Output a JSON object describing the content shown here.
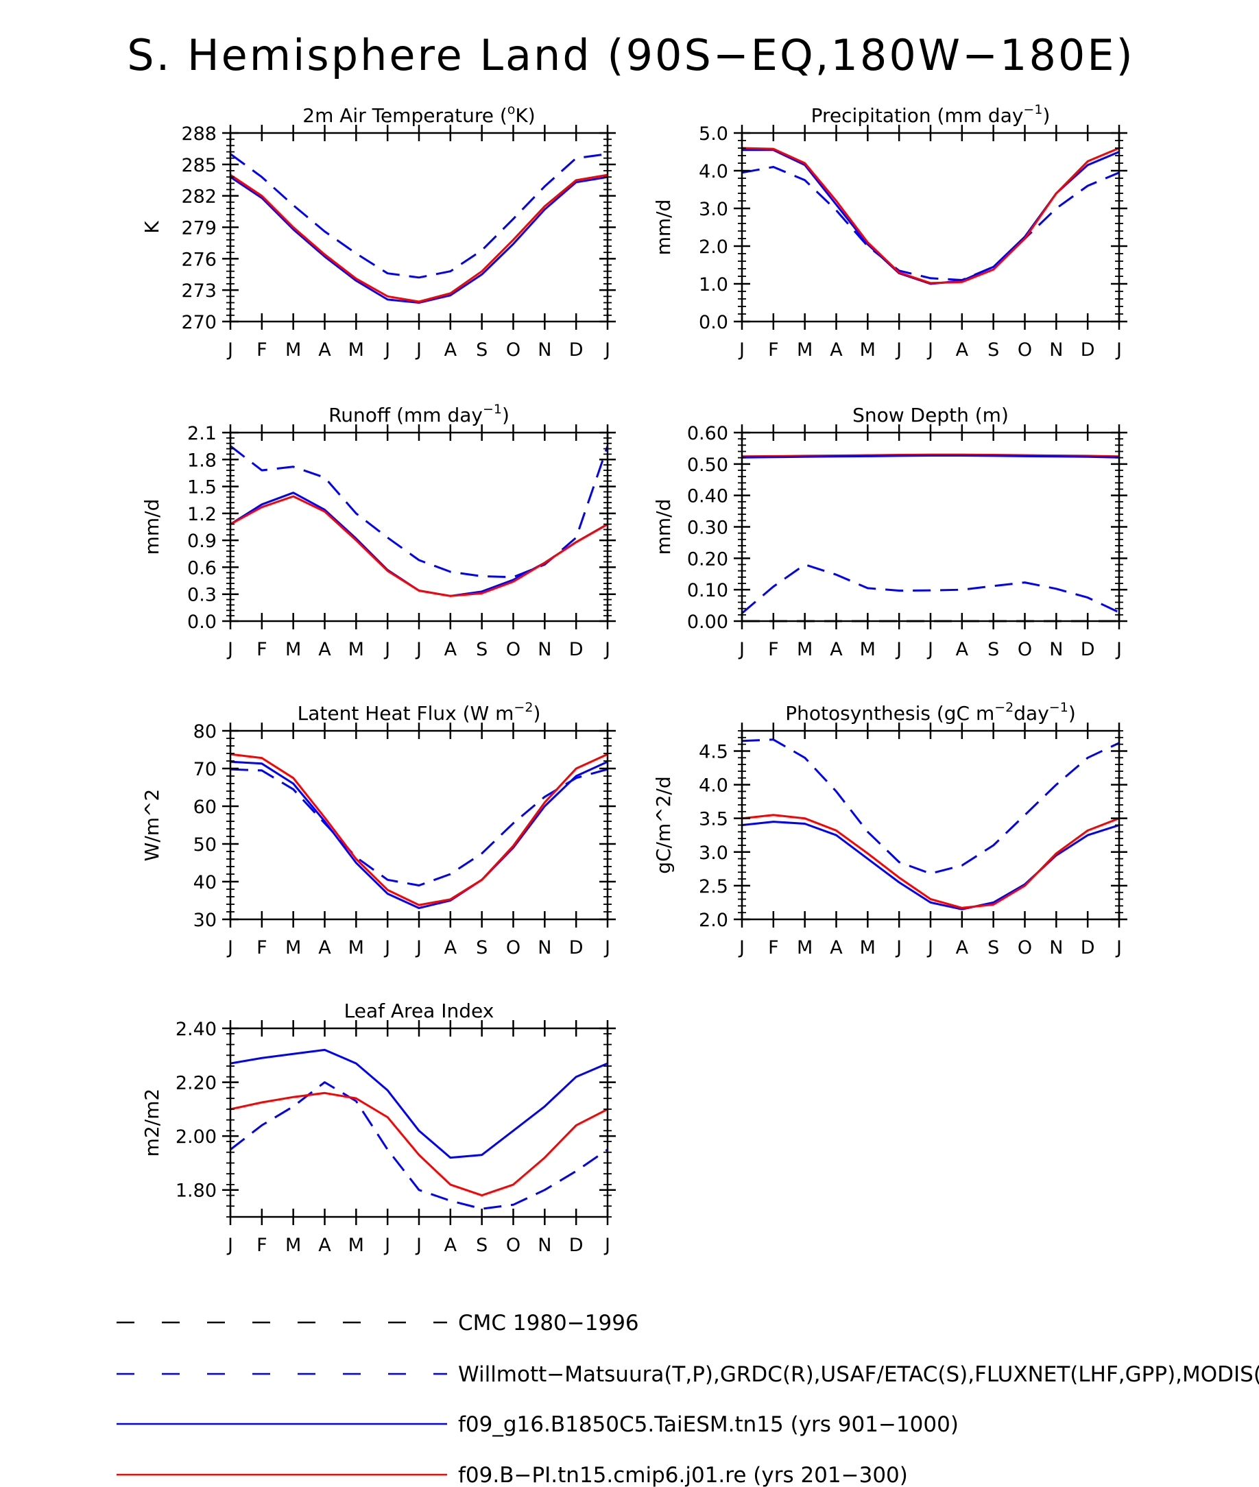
{
  "figure": {
    "title": "S. Hemisphere Land (90S−EQ,180W−180E)"
  },
  "legend": [
    {
      "label": "CMC 1980−1996",
      "color": "#000000",
      "dash": "dashed"
    },
    {
      "label": "Willmott−Matsuura(T,P),GRDC(R),USAF/ETAC(S),FLUXNET(LHF,GPP),MODIS(L",
      "color": "#0000ff",
      "dash": "dashed"
    },
    {
      "label": "f09_g16.B1850C5.TaiESM.tn15 (yrs 901−1000)",
      "color": "#0000ff",
      "dash": "solid"
    },
    {
      "label": "f09.B−PI.tn15.cmip6.j01.re (yrs 201−300)",
      "color": "#ff0000",
      "dash": "solid"
    }
  ],
  "chart_data": [
    {
      "type": "line",
      "title_main": "2m Air Temperature (",
      "title_sup": "o",
      "title_end": "K)",
      "ylabel": "K",
      "categories": [
        "J",
        "F",
        "M",
        "A",
        "M",
        "J",
        "J",
        "A",
        "S",
        "O",
        "N",
        "D",
        "J"
      ],
      "ylim": [
        270,
        288
      ],
      "yticks": [
        270,
        273,
        276,
        279,
        282,
        285,
        288
      ],
      "ytick_labels": [
        "270",
        "273",
        "276",
        "279",
        "282",
        "285",
        "288"
      ],
      "series": [
        {
          "color": "#0000ff",
          "dash": "dashed",
          "values": [
            286.0,
            283.8,
            281.1,
            278.6,
            276.5,
            274.6,
            274.2,
            274.8,
            276.8,
            279.8,
            282.9,
            285.6,
            286.0
          ]
        },
        {
          "color": "#0000ff",
          "dash": "solid",
          "values": [
            283.8,
            281.8,
            278.8,
            276.2,
            273.9,
            272.1,
            271.8,
            272.5,
            274.5,
            277.4,
            280.7,
            283.3,
            283.8
          ]
        },
        {
          "color": "#ff0000",
          "dash": "solid",
          "values": [
            284.0,
            282.0,
            279.0,
            276.4,
            274.1,
            272.4,
            271.9,
            272.7,
            274.8,
            277.8,
            281.0,
            283.5,
            284.0
          ]
        }
      ]
    },
    {
      "type": "line",
      "title_main": "Precipitation (mm day",
      "title_sup": "−1",
      "title_end": ")",
      "ylabel": "mm/d",
      "categories": [
        "J",
        "F",
        "M",
        "A",
        "M",
        "J",
        "J",
        "A",
        "S",
        "O",
        "N",
        "D",
        "J"
      ],
      "ylim": [
        0,
        5
      ],
      "yticks": [
        0,
        1,
        2,
        3,
        4,
        5
      ],
      "ytick_labels": [
        "0.0",
        "1.0",
        "2.0",
        "3.0",
        "4.0",
        "5.0"
      ],
      "series": [
        {
          "color": "#0000ff",
          "dash": "dashed",
          "values": [
            3.95,
            4.1,
            3.75,
            2.95,
            2.0,
            1.35,
            1.15,
            1.1,
            1.45,
            2.2,
            3.0,
            3.6,
            3.95
          ]
        },
        {
          "color": "#0000ff",
          "dash": "solid",
          "values": [
            4.55,
            4.55,
            4.15,
            3.1,
            2.05,
            1.28,
            1.0,
            1.08,
            1.45,
            2.25,
            3.4,
            4.15,
            4.5
          ]
        },
        {
          "color": "#ff0000",
          "dash": "solid",
          "values": [
            4.6,
            4.58,
            4.2,
            3.2,
            2.1,
            1.3,
            1.02,
            1.05,
            1.38,
            2.2,
            3.4,
            4.25,
            4.6
          ]
        }
      ]
    },
    {
      "type": "line",
      "title_main": "Runoff (mm day",
      "title_sup": "−1",
      "title_end": ")",
      "ylabel": "mm/d",
      "categories": [
        "J",
        "F",
        "M",
        "A",
        "M",
        "J",
        "J",
        "A",
        "S",
        "O",
        "N",
        "D",
        "J"
      ],
      "ylim": [
        0,
        2.1
      ],
      "yticks": [
        0,
        0.3,
        0.6,
        0.9,
        1.2,
        1.5,
        1.8,
        2.1
      ],
      "ytick_labels": [
        "0.0",
        "0.3",
        "0.6",
        "0.9",
        "1.2",
        "1.5",
        "1.8",
        "2.1"
      ],
      "series": [
        {
          "color": "#0000ff",
          "dash": "dashed",
          "values": [
            1.95,
            1.68,
            1.72,
            1.6,
            1.2,
            0.93,
            0.68,
            0.55,
            0.5,
            0.49,
            0.63,
            0.93,
            1.95
          ]
        },
        {
          "color": "#0000ff",
          "dash": "solid",
          "values": [
            1.08,
            1.3,
            1.43,
            1.24,
            0.92,
            0.57,
            0.34,
            0.28,
            0.33,
            0.46,
            0.65,
            0.88,
            1.08
          ]
        },
        {
          "color": "#ff0000",
          "dash": "solid",
          "values": [
            1.08,
            1.27,
            1.39,
            1.22,
            0.9,
            0.56,
            0.34,
            0.28,
            0.31,
            0.44,
            0.65,
            0.88,
            1.08
          ]
        }
      ]
    },
    {
      "type": "line",
      "title_main": "Snow Depth (m)",
      "title_sup": "",
      "title_end": "",
      "ylabel": "mm/d",
      "categories": [
        "J",
        "F",
        "M",
        "A",
        "M",
        "J",
        "J",
        "A",
        "S",
        "O",
        "N",
        "D",
        "J"
      ],
      "ylim": [
        0,
        0.6
      ],
      "yticks": [
        0,
        0.1,
        0.2,
        0.3,
        0.4,
        0.5,
        0.6
      ],
      "ytick_labels": [
        "0.00",
        "0.10",
        "0.20",
        "0.30",
        "0.40",
        "0.50",
        "0.60"
      ],
      "series": [
        {
          "color": "#000000",
          "dash": "dashed",
          "values": [
            0.0,
            0.0,
            0.0,
            0.0,
            0.0,
            0.0,
            0.0,
            0.0,
            0.0,
            0.0,
            0.0,
            0.0,
            0.0
          ]
        },
        {
          "color": "#0000ff",
          "dash": "dashed",
          "values": [
            0.025,
            0.11,
            0.18,
            0.148,
            0.105,
            0.097,
            0.098,
            0.1,
            0.112,
            0.123,
            0.103,
            0.075,
            0.028
          ]
        },
        {
          "color": "#ff0000",
          "dash": "solid",
          "values": [
            0.524,
            0.525,
            0.526,
            0.527,
            0.528,
            0.529,
            0.53,
            0.53,
            0.529,
            0.528,
            0.527,
            0.526,
            0.524
          ]
        },
        {
          "color": "#0000ff",
          "dash": "solid",
          "values": [
            0.521,
            0.522,
            0.523,
            0.524,
            0.525,
            0.526,
            0.527,
            0.527,
            0.526,
            0.525,
            0.524,
            0.523,
            0.521
          ]
        }
      ]
    },
    {
      "type": "line",
      "title_main": "Latent Heat Flux (W m",
      "title_sup": "−2",
      "title_end": ")",
      "ylabel": "W/m^2",
      "categories": [
        "J",
        "F",
        "M",
        "A",
        "M",
        "J",
        "J",
        "A",
        "S",
        "O",
        "N",
        "D",
        "J"
      ],
      "ylim": [
        30,
        80
      ],
      "yticks": [
        30,
        40,
        50,
        60,
        70,
        80
      ],
      "ytick_labels": [
        "30",
        "40",
        "50",
        "60",
        "70",
        "80"
      ],
      "series": [
        {
          "color": "#0000ff",
          "dash": "dashed",
          "values": [
            69.8,
            69.5,
            64.5,
            55.5,
            46.5,
            40.5,
            39.0,
            42.0,
            47.5,
            55.5,
            62.5,
            67.5,
            69.8
          ]
        },
        {
          "color": "#0000ff",
          "dash": "solid",
          "values": [
            71.8,
            71.3,
            66.0,
            56.0,
            45.0,
            36.8,
            33.0,
            35.0,
            40.5,
            49.0,
            60.0,
            68.0,
            71.8
          ]
        },
        {
          "color": "#ff0000",
          "dash": "solid",
          "values": [
            73.8,
            72.8,
            67.5,
            57.0,
            46.0,
            37.8,
            33.8,
            35.3,
            40.5,
            49.5,
            61.0,
            70.0,
            73.8
          ]
        }
      ]
    },
    {
      "type": "line",
      "title_main": "Photosynthesis (gC m",
      "title_sup": "−2",
      "title_mid": "day",
      "title_sup2": "−1",
      "title_end": ")",
      "ylabel": "gC/m^2/d",
      "categories": [
        "J",
        "F",
        "M",
        "A",
        "M",
        "J",
        "J",
        "A",
        "S",
        "O",
        "N",
        "D",
        "J"
      ],
      "ylim": [
        2.0,
        4.8
      ],
      "yticks": [
        2.0,
        2.5,
        3.0,
        3.5,
        4.0,
        4.5
      ],
      "ytick_labels": [
        "2.0",
        "2.5",
        "3.0",
        "3.5",
        "4.0",
        "4.5"
      ],
      "series": [
        {
          "color": "#0000ff",
          "dash": "dashed",
          "values": [
            4.65,
            4.67,
            4.4,
            3.9,
            3.3,
            2.85,
            2.68,
            2.8,
            3.1,
            3.55,
            4.0,
            4.4,
            4.62
          ]
        },
        {
          "color": "#0000ff",
          "dash": "solid",
          "values": [
            3.4,
            3.45,
            3.42,
            3.25,
            2.9,
            2.55,
            2.25,
            2.15,
            2.25,
            2.52,
            2.95,
            3.25,
            3.4
          ]
        },
        {
          "color": "#ff0000",
          "dash": "solid",
          "values": [
            3.5,
            3.55,
            3.5,
            3.32,
            2.98,
            2.62,
            2.3,
            2.17,
            2.22,
            2.5,
            2.98,
            3.32,
            3.5
          ]
        }
      ]
    },
    {
      "type": "line",
      "title_main": "Leaf Area Index",
      "title_sup": "",
      "title_end": "",
      "ylabel": "m2/m2",
      "categories": [
        "J",
        "F",
        "M",
        "A",
        "M",
        "J",
        "J",
        "A",
        "S",
        "O",
        "N",
        "D",
        "J"
      ],
      "ylim": [
        1.7,
        2.4
      ],
      "yticks": [
        1.8,
        2.0,
        2.2,
        2.4
      ],
      "ytick_labels": [
        "1.80",
        "2.00",
        "2.20",
        "2.40"
      ],
      "series": [
        {
          "color": "#0000ff",
          "dash": "dashed",
          "values": [
            1.95,
            2.04,
            2.11,
            2.2,
            2.13,
            1.95,
            1.8,
            1.76,
            1.73,
            1.745,
            1.8,
            1.87,
            1.95
          ]
        },
        {
          "color": "#0000ff",
          "dash": "solid",
          "values": [
            2.27,
            2.29,
            2.305,
            2.32,
            2.27,
            2.17,
            2.02,
            1.92,
            1.93,
            2.02,
            2.11,
            2.22,
            2.27
          ]
        },
        {
          "color": "#ff0000",
          "dash": "solid",
          "values": [
            2.1,
            2.125,
            2.145,
            2.16,
            2.14,
            2.07,
            1.93,
            1.82,
            1.78,
            1.82,
            1.92,
            2.04,
            2.1
          ]
        }
      ]
    }
  ]
}
